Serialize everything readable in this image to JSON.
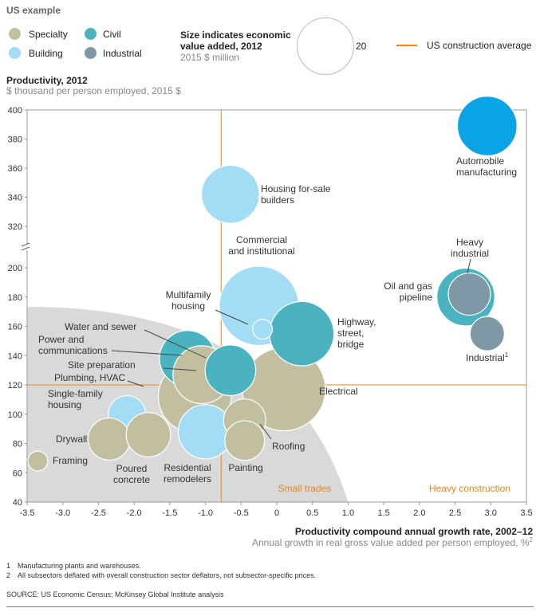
{
  "header": {
    "title": "US example"
  },
  "colors": {
    "Specialty": "#c2bea0",
    "Civil": "#4ab3bf",
    "Building": "#a3dcf5",
    "Industrial": "#7f98a5",
    "avg_line": "#e3861d",
    "auto": "#0aa3e6",
    "small_trades_region": "#d9d9d9",
    "zone_label": "#e3861d"
  },
  "legend": {
    "items": [
      {
        "key": "Specialty",
        "label": "Specialty"
      },
      {
        "key": "Civil",
        "label": "Civil"
      },
      {
        "key": "Building",
        "label": "Building"
      },
      {
        "key": "Industrial",
        "label": "Industrial"
      }
    ],
    "size_title": "Size indicates economic value added, 2012",
    "size_unit": "2015 $ million",
    "size_value": "20",
    "avg_label": "US construction average"
  },
  "chart_data": {
    "type": "scatter",
    "title": "",
    "ylabel": "Productivity,  2012",
    "ylabel_sub": "$ thousand per person employed, 2015 $",
    "xlabel": "Productivity  compound annual growth rate, 2002–12",
    "xlabel_sub": "Annual growth in real gross value added per person employed, %",
    "xlabel_sub_footnote": "2",
    "xlim": [
      -3.5,
      3.5
    ],
    "x_ticks": [
      -3.5,
      -3.0,
      -2.5,
      -2.0,
      -1.5,
      -1.0,
      -0.5,
      0,
      0.5,
      1.0,
      1.5,
      2.0,
      2.5,
      3.0,
      3.5
    ],
    "x_tick_labels": [
      "-3.5",
      "-3.0",
      "-2.5",
      "-2.0",
      "-1.5",
      "-1.0",
      "-0.5",
      "0",
      "0.5",
      "1.0",
      "1.5",
      "2.0",
      "2.5",
      "3.0",
      "3.5"
    ],
    "y_axis_break": true,
    "y_lower_range": [
      40,
      200
    ],
    "y_upper_range": [
      320,
      400
    ],
    "y_ticks": [
      40,
      60,
      80,
      100,
      120,
      140,
      160,
      180,
      200,
      320,
      340,
      360,
      380,
      400
    ],
    "averages": {
      "x": -0.78,
      "y": 120
    },
    "zones": [
      {
        "label": "Small trades"
      },
      {
        "label": "Heavy construction"
      }
    ],
    "series": [
      {
        "label": "Electrical",
        "category": "Specialty",
        "x": 0.1,
        "y": 117,
        "size": 35
      },
      {
        "label": "Commercial and institutional",
        "category": "Building",
        "x": -0.25,
        "y": 174,
        "size": 32
      },
      {
        "label": "Plumbing, HVAC",
        "category": "Specialty",
        "x": -1.15,
        "y": 112,
        "size": 27
      },
      {
        "label": "Power and communications",
        "category": "Civil",
        "x": -1.25,
        "y": 138,
        "size": 16
      },
      {
        "label": "Site preparation",
        "category": "Specialty",
        "x": -1.05,
        "y": 127,
        "size": 17
      },
      {
        "label": "Highway, street, bridge",
        "category": "Civil",
        "x": 0.35,
        "y": 155,
        "size": 21
      },
      {
        "label": "Water and sewer",
        "category": "Civil",
        "x": -0.65,
        "y": 130,
        "size": 13
      },
      {
        "label": "Housing for-sale builders",
        "category": "Building",
        "x": -0.65,
        "y": 342,
        "size": 17
      },
      {
        "label": "Multifamily housing",
        "category": "Building",
        "x": -0.2,
        "y": 158,
        "size": 2
      },
      {
        "label": "Residential remodelers",
        "category": "Building",
        "x": -1.0,
        "y": 88,
        "size": 15
      },
      {
        "label": "Single-family housing",
        "category": "Building",
        "x": -2.1,
        "y": 100,
        "size": 7
      },
      {
        "label": "Drywall",
        "category": "Specialty",
        "x": -2.35,
        "y": 83,
        "size": 9
      },
      {
        "label": "Poured concrete",
        "category": "Specialty",
        "x": -1.8,
        "y": 86,
        "size": 10
      },
      {
        "label": "Framing",
        "category": "Specialty",
        "x": -3.35,
        "y": 68,
        "size": 2
      },
      {
        "label": "Roofing",
        "category": "Specialty",
        "x": -0.45,
        "y": 96,
        "size": 9
      },
      {
        "label": "Painting",
        "category": "Specialty",
        "x": -0.45,
        "y": 82,
        "size": 8
      },
      {
        "label": "Automobile manufacturing",
        "category": "Auto",
        "x": 2.95,
        "y": 389,
        "size": 18
      },
      {
        "label": "Oil and gas pipeline",
        "category": "Civil",
        "x": 2.65,
        "y": 180,
        "size": 17
      },
      {
        "label": "Heavy industrial",
        "category": "Industrial",
        "x": 2.7,
        "y": 182,
        "size": 9
      },
      {
        "label": "Industrial",
        "category": "Industrial",
        "x": 2.95,
        "y": 155,
        "size": 6
      }
    ],
    "industrial_footnote": "1"
  },
  "footnotes": [
    {
      "num": "1",
      "text": "Manufacturing plants and warehouses."
    },
    {
      "num": "2",
      "text": "All subsectors deflated with overall construction sector deflators, not subsector-specific prices."
    }
  ],
  "source": "SOURCE:  US Economic Census; McKinsey Global Institute analysis"
}
